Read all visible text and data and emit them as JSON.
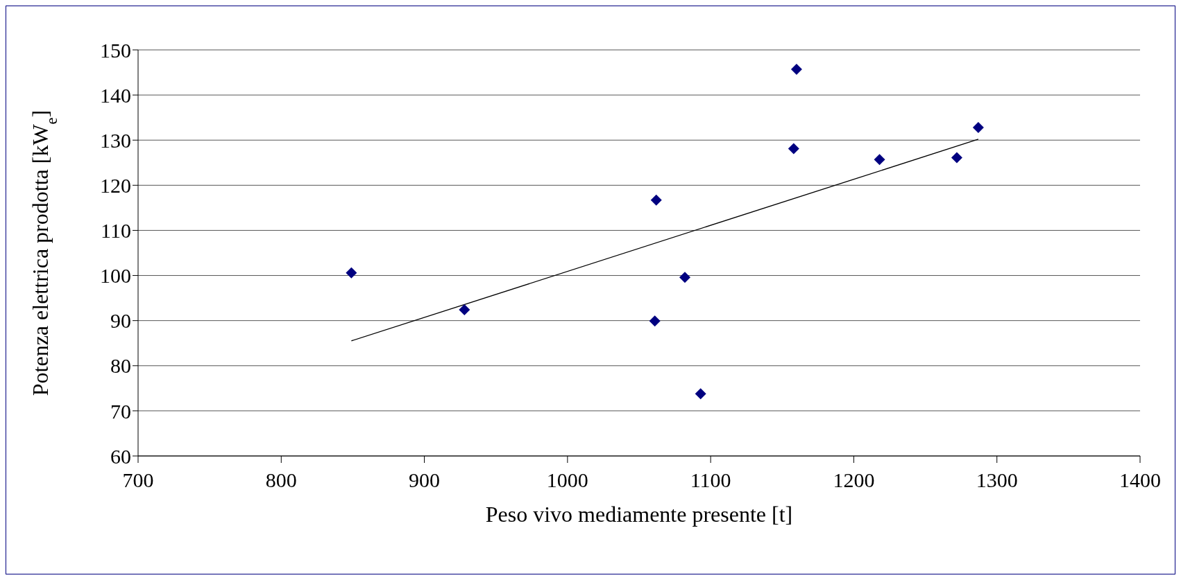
{
  "chart_data": {
    "type": "scatter",
    "xlabel": "Peso vivo mediamente presente [t]",
    "ylabel": "Potenza elettrica prodotta [kW$_{e}$]",
    "xlim": [
      700,
      1400
    ],
    "xticks": [
      700,
      800,
      900,
      1000,
      1100,
      1200,
      1300,
      1400
    ],
    "ylim": [
      60,
      150
    ],
    "yticks": [
      60,
      70,
      80,
      90,
      100,
      110,
      120,
      130,
      140,
      150
    ],
    "grid": "y",
    "marker": "diamond",
    "series": [
      {
        "color": "#000080",
        "x": [
          849,
          928,
          1061,
          1062,
          1082,
          1093,
          1158,
          1160,
          1218,
          1272,
          1287
        ],
        "values": [
          100.6,
          92.4,
          89.9,
          116.7,
          99.6,
          73.8,
          128.1,
          145.7,
          125.7,
          126.1,
          132.8
        ]
      },
      {
        "type": "line",
        "color": "#000000",
        "x": [
          849,
          1287
        ],
        "values": [
          85.5,
          130.2
        ],
        "line_style": "solid",
        "marker": "none"
      }
    ]
  }
}
